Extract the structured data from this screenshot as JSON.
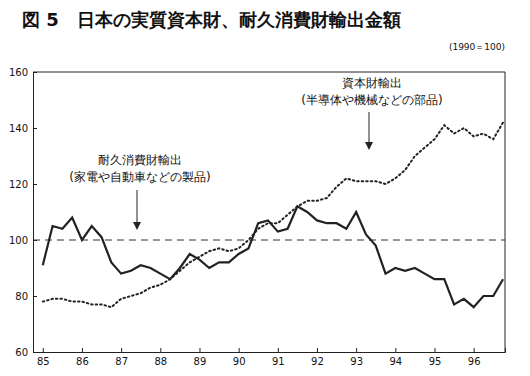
{
  "chart_data": {
    "type": "line",
    "title": "図 5　日本の実質資本財、耐久消費財輸出金額",
    "subtitle": "(1990＝100)",
    "x": [
      85,
      85.25,
      85.5,
      85.75,
      86,
      86.25,
      86.5,
      86.75,
      87,
      87.25,
      87.5,
      87.75,
      88,
      88.25,
      88.5,
      88.75,
      89,
      89.25,
      89.5,
      89.75,
      90,
      90.25,
      90.5,
      90.75,
      91,
      91.25,
      91.5,
      91.75,
      92,
      92.25,
      92.5,
      92.75,
      93,
      93.25,
      93.5,
      93.75,
      94,
      94.25,
      94.5,
      94.75,
      95,
      95.25,
      95.5,
      95.75,
      96,
      96.25,
      96.5,
      96.75
    ],
    "series": [
      {
        "name": "耐久消費財輸出",
        "color": "#222222",
        "line_style": "solid",
        "values": [
          91,
          105,
          104,
          108,
          100,
          105,
          101,
          92,
          88,
          89,
          91,
          90,
          88,
          86,
          90,
          95,
          93,
          90,
          92,
          92,
          95,
          97,
          106,
          107,
          103,
          104,
          112,
          110,
          107,
          106,
          106,
          104,
          110,
          102,
          98,
          88,
          90,
          89,
          90,
          88,
          86,
          86,
          77,
          79,
          76,
          80,
          80,
          86
        ]
      },
      {
        "name": "資本財輸出",
        "color": "#222222",
        "line_style": "dotted",
        "values": [
          78,
          79,
          79,
          78,
          78,
          77,
          77,
          76,
          79,
          80,
          81,
          83,
          84,
          86,
          89,
          92,
          94,
          96,
          97,
          96,
          97,
          100,
          104,
          106,
          106,
          109,
          112,
          114,
          114,
          115,
          119,
          122,
          121,
          121,
          121,
          120,
          122,
          125,
          130,
          133,
          136,
          141,
          138,
          140,
          137,
          138,
          136,
          142
        ]
      }
    ],
    "annotations": [
      "(家電や自動車などの製品)",
      "(半導体や機械などの部品)"
    ],
    "reference_line": 100,
    "xlim": [
      84.75,
      96.8
    ],
    "xticks": [
      85,
      86,
      87,
      88,
      89,
      90,
      91,
      92,
      93,
      94,
      95,
      96
    ],
    "ylim": [
      60,
      160
    ],
    "yticks": [
      60,
      80,
      100,
      120,
      140,
      160
    ],
    "grid": false
  }
}
